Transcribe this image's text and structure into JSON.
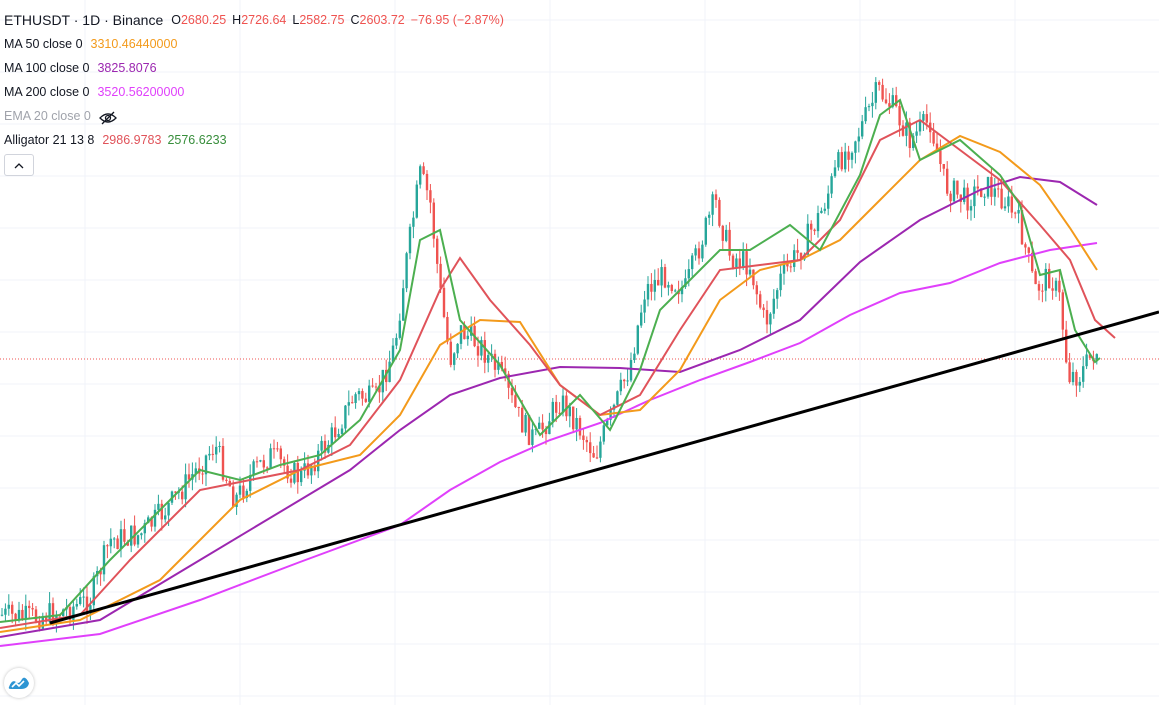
{
  "header": {
    "symbol": "ETHUSDT · 1D · Binance",
    "o_label": "O",
    "o_value": "2680.25",
    "h_label": "H",
    "h_value": "2726.64",
    "l_label": "L",
    "l_value": "2582.75",
    "c_label": "C",
    "c_value": "2603.72",
    "change": "−76.95 (−2.87%)"
  },
  "indicators": [
    {
      "label": "MA 50 close 0",
      "value": "3310.46440000",
      "color": "#f39a1b"
    },
    {
      "label": "MA 100 close 0",
      "value": "3825.8076",
      "color": "#9c27b0"
    },
    {
      "label": "MA 200 close 0",
      "value": "3520.56200000",
      "color": "#e040fb"
    },
    {
      "label": "EMA 20 close 0",
      "hidden": true
    },
    {
      "label": "Alligator 21 13 8",
      "jaw": "2986.9783",
      "jaw_color": "#e0535a",
      "teeth": "2576.6233",
      "teeth_color": "#388e3c"
    }
  ],
  "colors": {
    "up": "#26a69a",
    "down": "#ef5350",
    "ma50": "#f39a1b",
    "ma100": "#9c27b0",
    "ma200": "#e040fb",
    "jaw": "#e0535a",
    "teeth": "#4caf50",
    "trendline": "#000000",
    "price_line": "#ef5350"
  },
  "icons": {
    "hide": "eye-crossed-icon",
    "collapse": "chevron-up-icon",
    "logo": "tradingview-logo-icon"
  },
  "chart_data": {
    "type": "candlestick",
    "symbol": "ETHUSDT",
    "interval": "1D",
    "exchange": "Binance",
    "last_close": 2603.72,
    "price_axis_visible": false,
    "time_axis_visible": false,
    "grid": true,
    "series": [
      {
        "name": "MA 50 close 0",
        "last": 3310.4644
      },
      {
        "name": "MA 100 close 0",
        "last": 3825.8076
      },
      {
        "name": "MA 200 close 0",
        "last": 3520.562
      },
      {
        "name": "Alligator 21 13 8",
        "jaw": 2986.9783,
        "teeth": 2576.6233
      }
    ],
    "annotation": "ascending trendline"
  }
}
